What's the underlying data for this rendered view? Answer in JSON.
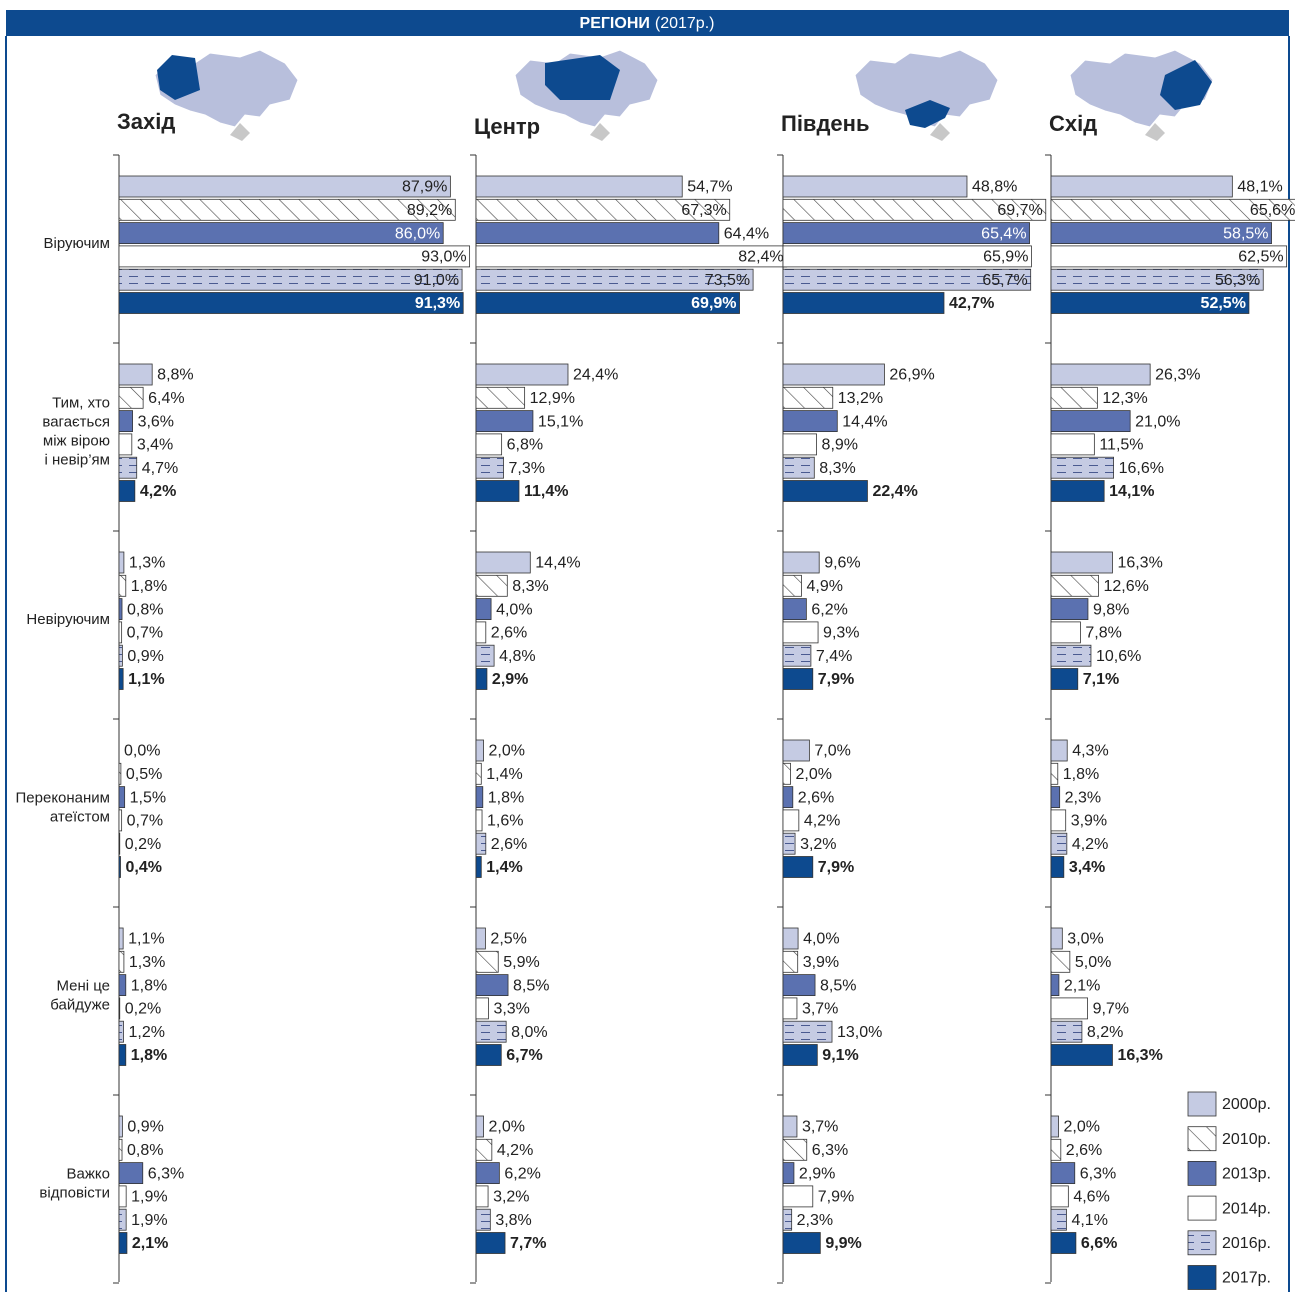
{
  "chart_data": {
    "type": "bar",
    "orientation": "horizontal",
    "title": "РЕГІОНИ",
    "subtitle": "(2017р.)",
    "xlim": [
      0,
      100
    ],
    "categories": [
      [
        "Віруючим"
      ],
      [
        "Тим, хто",
        "вагається",
        "між вірою",
        "і невір’ям"
      ],
      [
        "Невіруючим"
      ],
      [
        "Переконаним",
        "атеїстом"
      ],
      [
        "Мені це",
        "байдуже"
      ],
      [
        "Важко",
        "відповісти"
      ]
    ],
    "series": [
      {
        "name": "2000р.",
        "color": "#c5cbe3",
        "pattern": "solid"
      },
      {
        "name": "2010р.",
        "color": "#ffffff",
        "pattern": "hatch"
      },
      {
        "name": "2013р.",
        "color": "#5b71b0",
        "pattern": "solid"
      },
      {
        "name": "2014р.",
        "color": "#ffffff",
        "pattern": "solid"
      },
      {
        "name": "2016р.",
        "color": "#c5cbe3",
        "pattern": "dash"
      },
      {
        "name": "2017р.",
        "color": "#0d4a8f",
        "pattern": "solid"
      }
    ],
    "panels": [
      {
        "title": "Захід",
        "values": [
          [
            87.9,
            89.2,
            86.0,
            93.0,
            91.0,
            91.3
          ],
          [
            8.8,
            6.4,
            3.6,
            3.4,
            4.7,
            4.2
          ],
          [
            1.3,
            1.8,
            0.8,
            0.7,
            0.9,
            1.1
          ],
          [
            0.0,
            0.5,
            1.5,
            0.7,
            0.2,
            0.4
          ],
          [
            1.1,
            1.3,
            1.8,
            0.2,
            1.2,
            1.8
          ],
          [
            0.9,
            0.8,
            6.3,
            1.9,
            1.9,
            2.1
          ]
        ],
        "value_labels": [
          [
            "87,9%",
            "89,2%",
            "86,0%",
            "93,0%",
            "91,0%",
            "91,3%"
          ],
          [
            "8,8%",
            "6,4%",
            "3,6%",
            "3,4%",
            "4,7%",
            "4,2%"
          ],
          [
            "1,3%",
            "1,8%",
            "0,8%",
            "0,7%",
            "0,9%",
            "1,1%"
          ],
          [
            "0,0%",
            "0,5%",
            "1,5%",
            "0,7%",
            "0,2%",
            "0,4%"
          ],
          [
            "1,1%",
            "1,3%",
            "1,8%",
            "0,2%",
            "1,2%",
            "1,8%"
          ],
          [
            "0,9%",
            "0,8%",
            "6,3%",
            "1,9%",
            "1,9%",
            "2,1%"
          ]
        ]
      },
      {
        "title": "Центр",
        "values": [
          [
            54.7,
            67.3,
            64.4,
            82.4,
            73.5,
            69.9
          ],
          [
            24.4,
            12.9,
            15.1,
            6.8,
            7.3,
            11.4
          ],
          [
            14.4,
            8.3,
            4.0,
            2.6,
            4.8,
            2.9
          ],
          [
            2.0,
            1.4,
            1.8,
            1.6,
            2.6,
            1.4
          ],
          [
            2.5,
            5.9,
            8.5,
            3.3,
            8.0,
            6.7
          ],
          [
            2.0,
            4.2,
            6.2,
            3.2,
            3.8,
            7.7
          ]
        ],
        "value_labels": [
          [
            "54,7%",
            "67,3%",
            "64,4%",
            "82,4%",
            "73,5%",
            "69,9%"
          ],
          [
            "24,4%",
            "12,9%",
            "15,1%",
            "6,8%",
            "7,3%",
            "11,4%"
          ],
          [
            "14,4%",
            "8,3%",
            "4,0%",
            "2,6%",
            "4,8%",
            "2,9%"
          ],
          [
            "2,0%",
            "1,4%",
            "1,8%",
            "1,6%",
            "2,6%",
            "1,4%"
          ],
          [
            "2,5%",
            "5,9%",
            "8,5%",
            "3,3%",
            "8,0%",
            "6,7%"
          ],
          [
            "2,0%",
            "4,2%",
            "6,2%",
            "3,2%",
            "3,8%",
            "7,7%"
          ]
        ]
      },
      {
        "title": "Південь",
        "values": [
          [
            48.8,
            69.7,
            65.4,
            65.9,
            65.7,
            42.7
          ],
          [
            26.9,
            13.2,
            14.4,
            8.9,
            8.3,
            22.4
          ],
          [
            9.6,
            4.9,
            6.2,
            9.3,
            7.4,
            7.9
          ],
          [
            7.0,
            2.0,
            2.6,
            4.2,
            3.2,
            7.9
          ],
          [
            4.0,
            3.9,
            8.5,
            3.7,
            13.0,
            9.1
          ],
          [
            3.7,
            6.3,
            2.9,
            7.9,
            2.3,
            9.9
          ]
        ],
        "value_labels": [
          [
            "48,8%",
            "69,7%",
            "65,4%",
            "65,9%",
            "65,7%",
            "42,7%"
          ],
          [
            "26,9%",
            "13,2%",
            "14,4%",
            "8,9%",
            "8,3%",
            "22,4%"
          ],
          [
            "9,6%",
            "4,9%",
            "6,2%",
            "9,3%",
            "7,4%",
            "7,9%"
          ],
          [
            "7,0%",
            "2,0%",
            "2,6%",
            "4,2%",
            "3,2%",
            "7,9%"
          ],
          [
            "4,0%",
            "3,9%",
            "8,5%",
            "3,7%",
            "13,0%",
            "9,1%"
          ],
          [
            "3,7%",
            "6,3%",
            "2,9%",
            "7,9%",
            "2,3%",
            "9,9%"
          ]
        ]
      },
      {
        "title": "Схід",
        "values": [
          [
            48.1,
            65.6,
            58.5,
            62.5,
            56.3,
            52.5
          ],
          [
            26.3,
            12.3,
            21.0,
            11.5,
            16.6,
            14.1
          ],
          [
            16.3,
            12.6,
            9.8,
            7.8,
            10.6,
            7.1
          ],
          [
            4.3,
            1.8,
            2.3,
            3.9,
            4.2,
            3.4
          ],
          [
            3.0,
            5.0,
            2.1,
            9.7,
            8.2,
            16.3
          ],
          [
            2.0,
            2.6,
            6.3,
            4.6,
            4.1,
            6.6
          ]
        ],
        "value_labels": [
          [
            "48,1%",
            "65,6%",
            "58,5%",
            "62,5%",
            "56,3%",
            "52,5%"
          ],
          [
            "26,3%",
            "12,3%",
            "21,0%",
            "11,5%",
            "16,6%",
            "14,1%"
          ],
          [
            "16,3%",
            "12,6%",
            "9,8%",
            "7,8%",
            "10,6%",
            "7,1%"
          ],
          [
            "4,3%",
            "1,8%",
            "2,3%",
            "3,9%",
            "4,2%",
            "3,4%"
          ],
          [
            "3,0%",
            "5,0%",
            "2,1%",
            "9,7%",
            "8,2%",
            "16,3%"
          ],
          [
            "2,0%",
            "2,6%",
            "6,3%",
            "4,6%",
            "4,1%",
            "6,6%"
          ]
        ]
      }
    ]
  }
}
